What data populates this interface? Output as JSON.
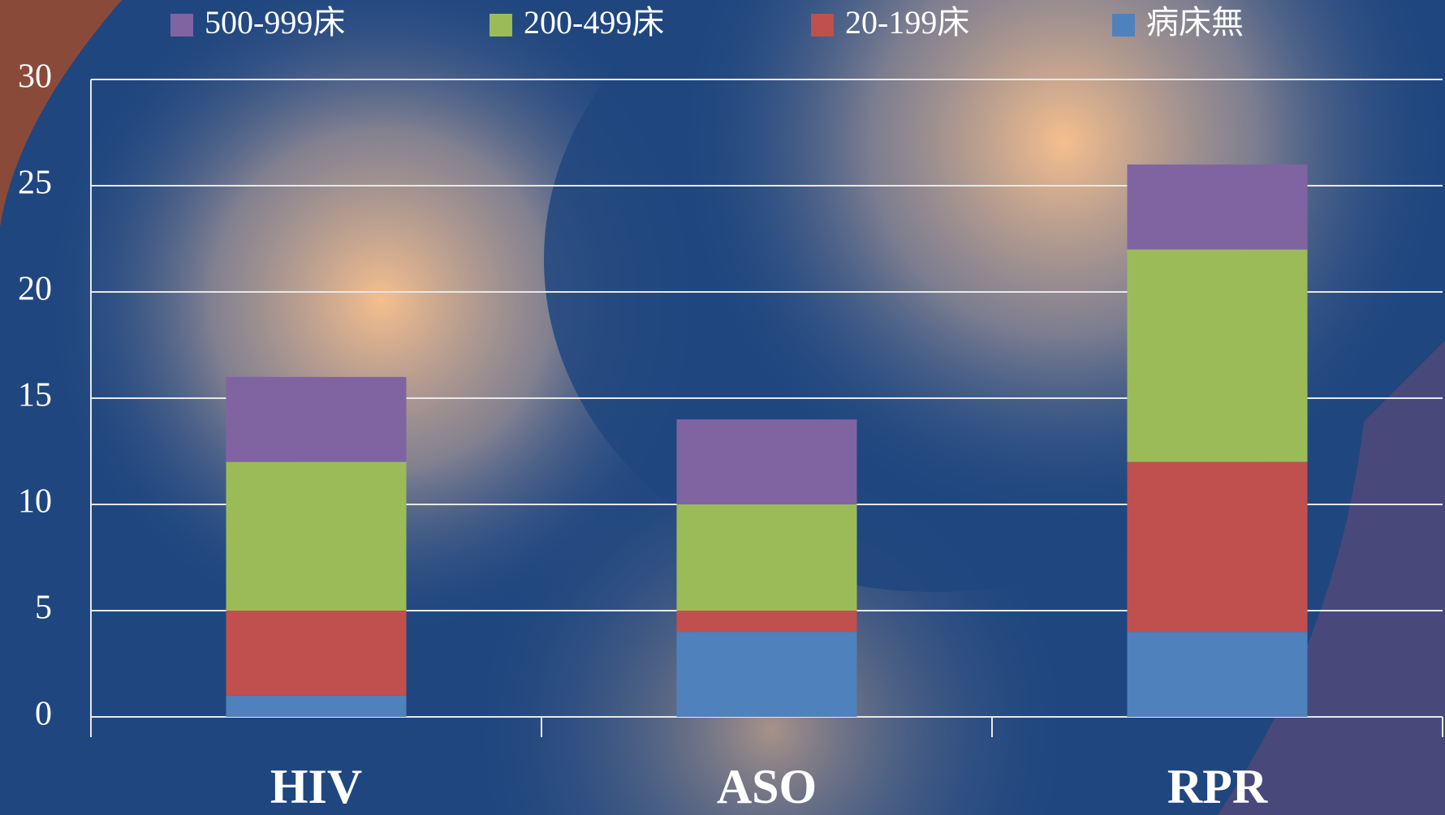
{
  "chart_data": {
    "type": "bar",
    "stacked": true,
    "categories": [
      "HIV",
      "ASO",
      "RPR"
    ],
    "series": [
      {
        "name": "500-999床",
        "color": "#8064a2",
        "values": [
          4,
          4,
          4
        ]
      },
      {
        "name": "200-499床",
        "color": "#9bbb59",
        "values": [
          7,
          5,
          10
        ]
      },
      {
        "name": "20-199床",
        "color": "#c0504d",
        "values": [
          4,
          1,
          8
        ]
      },
      {
        "name": "病床無",
        "color": "#4f81bd",
        "values": [
          1,
          4,
          4
        ]
      }
    ],
    "ylim": [
      0,
      30
    ],
    "yticks": [
      0,
      5,
      10,
      15,
      20,
      25,
      30
    ],
    "grid": true,
    "legend": "top"
  }
}
